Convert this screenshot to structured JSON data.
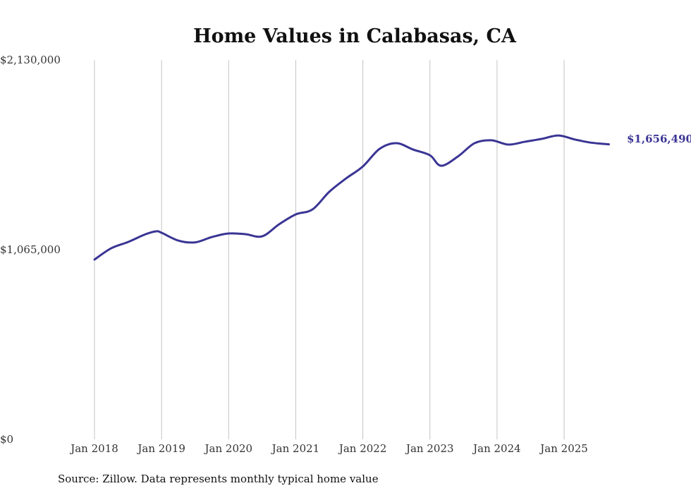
{
  "chart_data": {
    "type": "line",
    "title": "Home Values in Calabasas, CA",
    "xlabel": "",
    "ylabel": "",
    "ylim": [
      0,
      2130000
    ],
    "y_ticks": [
      0,
      1065000,
      2130000
    ],
    "y_tick_labels": [
      "$0",
      "$1,065,000",
      "$2,130,000"
    ],
    "x_tick_labels": [
      "Jan 2018",
      "Jan 2019",
      "Jan 2020",
      "Jan 2021",
      "Jan 2022",
      "Jan 2023",
      "Jan 2024",
      "Jan 2025"
    ],
    "grid": "vertical",
    "series": [
      {
        "name": "Typical home value",
        "color": "#3a3594",
        "x": [
          "2018-01",
          "2018-04",
          "2018-07",
          "2018-10",
          "2018-12",
          "2019-01",
          "2019-04",
          "2019-07",
          "2019-10",
          "2020-01",
          "2020-04",
          "2020-07",
          "2020-10",
          "2021-01",
          "2021-04",
          "2021-07",
          "2021-10",
          "2022-01",
          "2022-04",
          "2022-07",
          "2022-10",
          "2023-01",
          "2023-03",
          "2023-06",
          "2023-09",
          "2023-12",
          "2024-03",
          "2024-06",
          "2024-09",
          "2024-12",
          "2025-03",
          "2025-06",
          "2025-09"
        ],
        "values": [
          1009500,
          1073000,
          1108000,
          1150000,
          1168000,
          1160000,
          1116000,
          1106000,
          1136000,
          1156000,
          1152000,
          1140000,
          1207000,
          1263000,
          1291000,
          1390000,
          1465000,
          1532000,
          1631000,
          1663000,
          1627000,
          1595000,
          1536000,
          1588000,
          1663000,
          1679000,
          1655000,
          1671000,
          1687000,
          1706000,
          1683000,
          1665000,
          1656490
        ]
      }
    ],
    "end_label": "$1,656,490",
    "source": "Source: Zillow. Data represents monthly typical home value"
  }
}
